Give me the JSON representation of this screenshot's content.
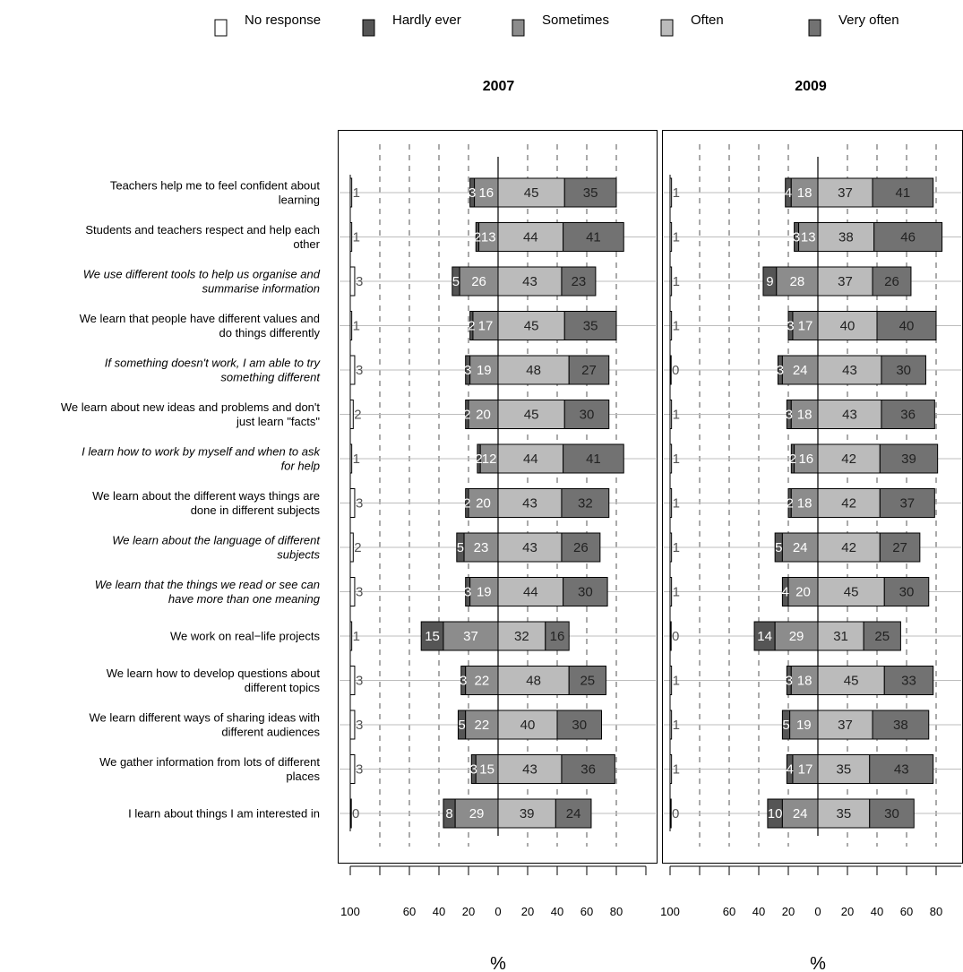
{
  "chart_data": {
    "type": "bar",
    "layout": "diverging-stacked",
    "legend": {
      "placement": "top",
      "items": [
        {
          "key": "no",
          "label": "No response",
          "color": "#ffffff"
        },
        {
          "key": "hardly",
          "label": "Hardly ever",
          "color": "#555555"
        },
        {
          "key": "sometimes",
          "label": "Sometimes",
          "color": "#8c8c8c"
        },
        {
          "key": "often",
          "label": "Often",
          "color": "#bbbbbb"
        },
        {
          "key": "veryoften",
          "label": "Very often",
          "color": "#727272"
        }
      ]
    },
    "xlabel": "%",
    "xlim": [
      -100,
      100
    ],
    "xticks": [
      {
        "v": -100,
        "label": "100"
      },
      {
        "v": -60,
        "label": "60"
      },
      {
        "v": -40,
        "label": "40"
      },
      {
        "v": -20,
        "label": "20"
      },
      {
        "v": 0,
        "label": "0"
      },
      {
        "v": 20,
        "label": "20"
      },
      {
        "v": 40,
        "label": "40"
      },
      {
        "v": 60,
        "label": "60"
      },
      {
        "v": 80,
        "label": "80"
      }
    ],
    "categories": [
      {
        "lines": [
          "Teachers help me to feel confident about",
          "learning"
        ],
        "italic": false
      },
      {
        "lines": [
          "Students and teachers respect and help each",
          "other"
        ],
        "italic": false
      },
      {
        "lines": [
          "We use different tools to help us organise and",
          "summarise information"
        ],
        "italic": true
      },
      {
        "lines": [
          "We learn that people have different values and",
          "do things differently"
        ],
        "italic": false
      },
      {
        "lines": [
          "If something doesn't work, I am able to try",
          "something different"
        ],
        "italic": true
      },
      {
        "lines": [
          "We learn about new ideas and problems and don't",
          "just learn \"facts\""
        ],
        "italic": false
      },
      {
        "lines": [
          "I learn how to work by myself and when to ask",
          "for help"
        ],
        "italic": true
      },
      {
        "lines": [
          "We learn about the different ways things are",
          "done in different subjects"
        ],
        "italic": false
      },
      {
        "lines": [
          "We learn about the language of different",
          "subjects"
        ],
        "italic": true
      },
      {
        "lines": [
          "We learn that the things we read or see can",
          "have more than one meaning"
        ],
        "italic": true
      },
      {
        "lines": [
          "We work on real−life projects"
        ],
        "italic": false
      },
      {
        "lines": [
          "We learn how to develop questions about",
          "different topics"
        ],
        "italic": false
      },
      {
        "lines": [
          "We learn different ways of sharing ideas with",
          "different audiences"
        ],
        "italic": false
      },
      {
        "lines": [
          "We gather information from lots of different",
          "places"
        ],
        "italic": false
      },
      {
        "lines": [
          "I learn about things I am interested in"
        ],
        "italic": false
      }
    ],
    "panels": [
      {
        "title": "2007",
        "rows": [
          {
            "no": 1,
            "hardly": 3,
            "sometimes": 16,
            "often": 45,
            "veryoften": 35
          },
          {
            "no": 1,
            "hardly": 2,
            "sometimes": 13,
            "often": 44,
            "veryoften": 41
          },
          {
            "no": 3,
            "hardly": 5,
            "sometimes": 26,
            "often": 43,
            "veryoften": 23
          },
          {
            "no": 1,
            "hardly": 2,
            "sometimes": 17,
            "often": 45,
            "veryoften": 35
          },
          {
            "no": 3,
            "hardly": 3,
            "sometimes": 19,
            "often": 48,
            "veryoften": 27
          },
          {
            "no": 2,
            "hardly": 2,
            "sometimes": 20,
            "often": 45,
            "veryoften": 30
          },
          {
            "no": 1,
            "hardly": 2,
            "sometimes": 12,
            "often": 44,
            "veryoften": 41
          },
          {
            "no": 3,
            "hardly": 2,
            "sometimes": 20,
            "often": 43,
            "veryoften": 32
          },
          {
            "no": 2,
            "hardly": 5,
            "sometimes": 23,
            "often": 43,
            "veryoften": 26
          },
          {
            "no": 3,
            "hardly": 3,
            "sometimes": 19,
            "often": 44,
            "veryoften": 30
          },
          {
            "no": 1,
            "hardly": 15,
            "sometimes": 37,
            "often": 32,
            "veryoften": 16
          },
          {
            "no": 3,
            "hardly": 3,
            "sometimes": 22,
            "often": 48,
            "veryoften": 25
          },
          {
            "no": 3,
            "hardly": 5,
            "sometimes": 22,
            "often": 40,
            "veryoften": 30
          },
          {
            "no": 3,
            "hardly": 3,
            "sometimes": 15,
            "often": 43,
            "veryoften": 36
          },
          {
            "no": 0,
            "hardly": 8,
            "sometimes": 29,
            "often": 39,
            "veryoften": 24
          }
        ]
      },
      {
        "title": "2009",
        "rows": [
          {
            "no": 1,
            "hardly": 4,
            "sometimes": 18,
            "often": 37,
            "veryoften": 41
          },
          {
            "no": 1,
            "hardly": 3,
            "sometimes": 13,
            "often": 38,
            "veryoften": 46
          },
          {
            "no": 1,
            "hardly": 9,
            "sometimes": 28,
            "often": 37,
            "veryoften": 26
          },
          {
            "no": 1,
            "hardly": 3,
            "sometimes": 17,
            "often": 40,
            "veryoften": 40
          },
          {
            "no": 0,
            "hardly": 3,
            "sometimes": 24,
            "often": 43,
            "veryoften": 30
          },
          {
            "no": 1,
            "hardly": 3,
            "sometimes": 18,
            "often": 43,
            "veryoften": 36
          },
          {
            "no": 1,
            "hardly": 2,
            "sometimes": 16,
            "often": 42,
            "veryoften": 39
          },
          {
            "no": 1,
            "hardly": 2,
            "sometimes": 18,
            "often": 42,
            "veryoften": 37
          },
          {
            "no": 1,
            "hardly": 5,
            "sometimes": 24,
            "often": 42,
            "veryoften": 27
          },
          {
            "no": 1,
            "hardly": 4,
            "sometimes": 20,
            "often": 45,
            "veryoften": 30
          },
          {
            "no": 0,
            "hardly": 14,
            "sometimes": 29,
            "often": 31,
            "veryoften": 25
          },
          {
            "no": 1,
            "hardly": 3,
            "sometimes": 18,
            "often": 45,
            "veryoften": 33
          },
          {
            "no": 1,
            "hardly": 5,
            "sometimes": 19,
            "often": 37,
            "veryoften": 38
          },
          {
            "no": 1,
            "hardly": 4,
            "sometimes": 17,
            "often": 35,
            "veryoften": 43
          },
          {
            "no": 0,
            "hardly": 10,
            "sometimes": 24,
            "often": 35,
            "veryoften": 30
          }
        ]
      }
    ],
    "grid": true,
    "gridlines_at": [
      -80,
      -60,
      -40,
      -20,
      20,
      40,
      60,
      80
    ]
  }
}
